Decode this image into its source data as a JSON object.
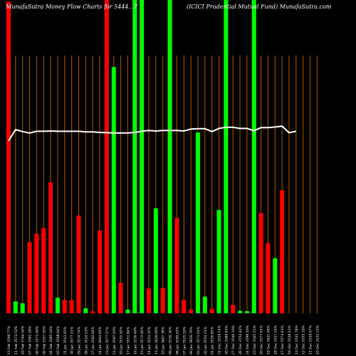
{
  "header": {
    "left_title": "MunafaSutra  Money Flow  Charts for 5444...7",
    "right_title": "(ICICI Prudential Mutual Fund) MunafaSutra.com"
  },
  "chart_data": {
    "type": "bar",
    "title": "MunafaSutra  Money Flow  Charts for 5444...7",
    "subtitle": "(ICICI Prudential Mutual Fund) MunafaSutra.com",
    "ylim": [
      0,
      100
    ],
    "categories": [
      "13 Feb 3596.77%",
      "11 Feb 3572.52%",
      "10 Feb 3744.54%",
      "07 Feb 3561.18%",
      "06 Feb 3571.46%",
      "05 Feb 3557.05%",
      "04 Feb 3585.16%",
      "03 Feb 3568.64%",
      "31 Jan 3543.65%",
      "30 Jan 3577.31%",
      "29 Jan 3574.74%",
      "28 Jan 3524.53%",
      "27 Jan 3562.04%",
      "24 Jan 3644.95%",
      "23 Jan 3577.17%",
      "21 Jan 3597.03%",
      "20 Jan 3555.92%",
      "17 Jan 3551.84%",
      "16 Jan 3536.49%",
      "15 Jan 3572.60%",
      "14 Jan 3551.15%",
      "13 Jan 3629.00%",
      "10 Jan 3607.58%",
      "09 Jan 3530.36%",
      "08 Jan 3599.62%",
      "07 Jan 3535.19%",
      "06 Jan 3629.76%",
      "03 Jan 3571.01%",
      "02 Jan 3554.51%",
      "01 Jan 3556.85%",
      "31 Dec 3529.14%",
      "30 Dec 3580.93%",
      "27 Dec 3546.10%",
      "26 Dec 3554.42%",
      "24 Dec 3599.50%",
      "23 Dec 3565.51%",
      "20 Dec 3577.01%",
      "19 Dec 3621.48%",
      "18 Dec 3557.24%",
      "17 Dec 3574.63%",
      "16 Dec 3536.21%",
      "13 Dec 3541.78%",
      "12 Dec 3555.10%",
      "11 Dec 3539.47%",
      "10 Dec 3532.33%"
    ],
    "values": [
      99.5,
      3.8,
      3.2,
      22.7,
      25.4,
      27.2,
      41.8,
      5.0,
      4.3,
      4.2,
      31.2,
      1.6,
      0.6,
      26.4,
      100,
      78.6,
      9.7,
      1.2,
      100,
      100,
      7.9,
      33.5,
      8.1,
      100,
      30.4,
      4.2,
      1.2,
      57.7,
      5.3,
      1.4,
      33.0,
      100,
      2.7,
      0.8,
      0.7,
      100,
      32.0,
      22.4,
      17.6,
      39.3,
      0,
      0,
      0,
      0,
      0
    ],
    "flow_direction": [
      "out",
      "in",
      "in",
      "out",
      "out",
      "out",
      "out",
      "in",
      "out",
      "out",
      "out",
      "in",
      "out",
      "out",
      "out",
      "in",
      "out",
      "in",
      "in",
      "in",
      "out",
      "in",
      "out",
      "in",
      "out",
      "out",
      "out",
      "in",
      "in",
      "out",
      "in",
      "in",
      "out",
      "in",
      "in",
      "in",
      "out",
      "out",
      "in",
      "out",
      "in",
      "in",
      "in",
      "in",
      "in"
    ],
    "price_line": [
      48.0,
      52.0,
      51.3,
      50.8,
      51.4,
      51.4,
      51.5,
      51.4,
      51.4,
      51.4,
      51.4,
      51.2,
      51.2,
      51.0,
      50.9,
      50.8,
      50.8,
      50.8,
      51.0,
      51.4,
      51.7,
      51.5,
      51.7,
      51.7,
      51.7,
      51.5,
      52.2,
      52.3,
      52.3,
      51.3,
      52.4,
      52.8,
      52.8,
      52.4,
      52.4,
      51.6,
      52.7,
      52.7,
      52.9,
      53.2,
      50.9,
      51.4,
      54.0,
      50.8,
      50.8
    ],
    "colors": {
      "inflow": "#00ff00",
      "outflow": "#ff0000",
      "price_line": "#ffffff",
      "vertical_grid": "#b35900",
      "background": "#000000"
    },
    "grid": true
  }
}
